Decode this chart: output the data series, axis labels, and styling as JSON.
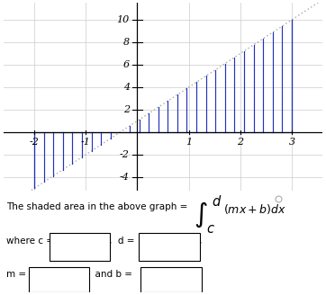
{
  "slope": 3,
  "intercept": 1,
  "x_start": -2,
  "x_end": 3,
  "xlim": [
    -2.6,
    3.6
  ],
  "ylim": [
    -5.2,
    11.5
  ],
  "xticks": [
    -2,
    -1,
    1,
    2,
    3
  ],
  "yticks": [
    -4,
    -2,
    2,
    4,
    6,
    8,
    10
  ],
  "line_color": "#aaaaaa",
  "hatch_color": "#2233bb",
  "hatch_n": 28,
  "background": "#ffffff"
}
